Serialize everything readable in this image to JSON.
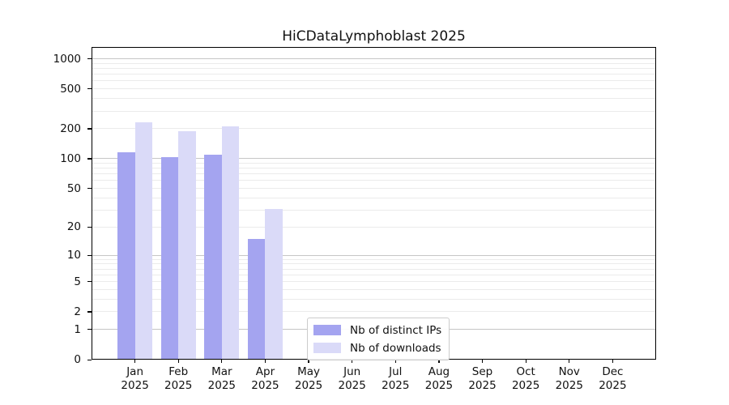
{
  "title": "HiCDataLymphoblast 2025",
  "chart_data": {
    "type": "bar",
    "title": "HiCDataLymphoblast 2025",
    "categories": [
      "Jan",
      "Feb",
      "Mar",
      "Apr",
      "May",
      "Jun",
      "Jul",
      "Aug",
      "Sep",
      "Oct",
      "Nov",
      "Dec"
    ],
    "x_tick_year": "2025",
    "series": [
      {
        "name": "Nb of distinct IPs",
        "color": "#a4a4f0",
        "values": [
          115,
          103,
          110,
          15,
          0,
          0,
          0,
          0,
          0,
          0,
          0,
          0
        ]
      },
      {
        "name": "Nb of downloads",
        "color": "#dadaf8",
        "values": [
          232,
          188,
          211,
          31,
          0,
          0,
          0,
          0,
          0,
          0,
          0,
          0
        ]
      }
    ],
    "xlabel": "",
    "ylabel": "",
    "y_scale": "log1p (position proportional to log10(1+y))",
    "y_ticks": [
      0,
      1,
      2,
      5,
      10,
      20,
      50,
      100,
      200,
      500,
      1000
    ],
    "y_tick_labels": [
      "0",
      "1",
      "2",
      "5",
      "10",
      "20",
      "50",
      "100",
      "200",
      "500",
      "1000"
    ],
    "ylim": [
      0,
      1270
    ],
    "grid": "horizontal minor+major, log decades",
    "legend_position": "lower center inside plot",
    "legend_entries": [
      "Nb of distinct IPs",
      "Nb of downloads"
    ]
  },
  "legend": {
    "item1": "Nb of distinct IPs",
    "item2": "Nb of downloads"
  }
}
